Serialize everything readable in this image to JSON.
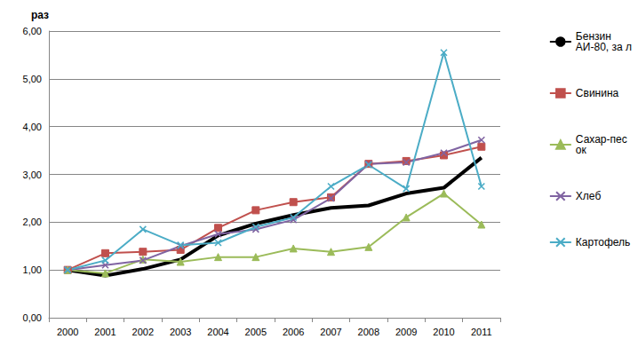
{
  "chart_data": {
    "type": "line",
    "y_label": "раз",
    "categories": [
      "2000",
      "2001",
      "2002",
      "2003",
      "2004",
      "2005",
      "2006",
      "2007",
      "2008",
      "2009",
      "2010",
      "2011"
    ],
    "series": [
      {
        "name": "Бензин АИ-80, за л",
        "color": "#000000",
        "marker": "none",
        "line_style": "thick",
        "values": [
          1.0,
          0.88,
          1.02,
          1.22,
          1.72,
          1.97,
          2.15,
          2.3,
          2.35,
          2.6,
          2.72,
          3.35
        ]
      },
      {
        "name": "Свинина",
        "color": "#c0504d",
        "marker": "square",
        "line_style": "solid",
        "values": [
          1.0,
          1.35,
          1.38,
          1.42,
          1.88,
          2.25,
          2.42,
          2.52,
          3.22,
          3.28,
          3.4,
          3.58
        ]
      },
      {
        "name": "Сахар-песок",
        "color": "#9bbb59",
        "marker": "triangle",
        "line_style": "solid",
        "values": [
          1.0,
          0.93,
          1.22,
          1.17,
          1.27,
          1.27,
          1.45,
          1.38,
          1.48,
          2.1,
          2.6,
          1.95
        ]
      },
      {
        "name": "Хлеб",
        "color": "#8064a2",
        "marker": "x",
        "line_style": "solid",
        "values": [
          1.0,
          1.1,
          1.2,
          1.5,
          1.75,
          1.85,
          2.05,
          2.5,
          3.22,
          3.25,
          3.45,
          3.72
        ]
      },
      {
        "name": "Картофель",
        "color": "#4bacc6",
        "marker": "x",
        "line_style": "solid",
        "values": [
          1.0,
          1.2,
          1.85,
          1.52,
          1.57,
          1.9,
          2.1,
          2.75,
          3.2,
          2.7,
          5.55,
          2.75
        ]
      }
    ],
    "ylim": [
      0,
      6
    ],
    "yticks": [
      {
        "value": 0,
        "label": "0,00"
      },
      {
        "value": 1,
        "label": "1,00"
      },
      {
        "value": 2,
        "label": "2,00"
      },
      {
        "value": 3,
        "label": "3,00"
      },
      {
        "value": 4,
        "label": "4,00"
      },
      {
        "value": 5,
        "label": "5,00"
      },
      {
        "value": 6,
        "label": "6,00"
      }
    ],
    "grid": true,
    "legend": "right"
  }
}
